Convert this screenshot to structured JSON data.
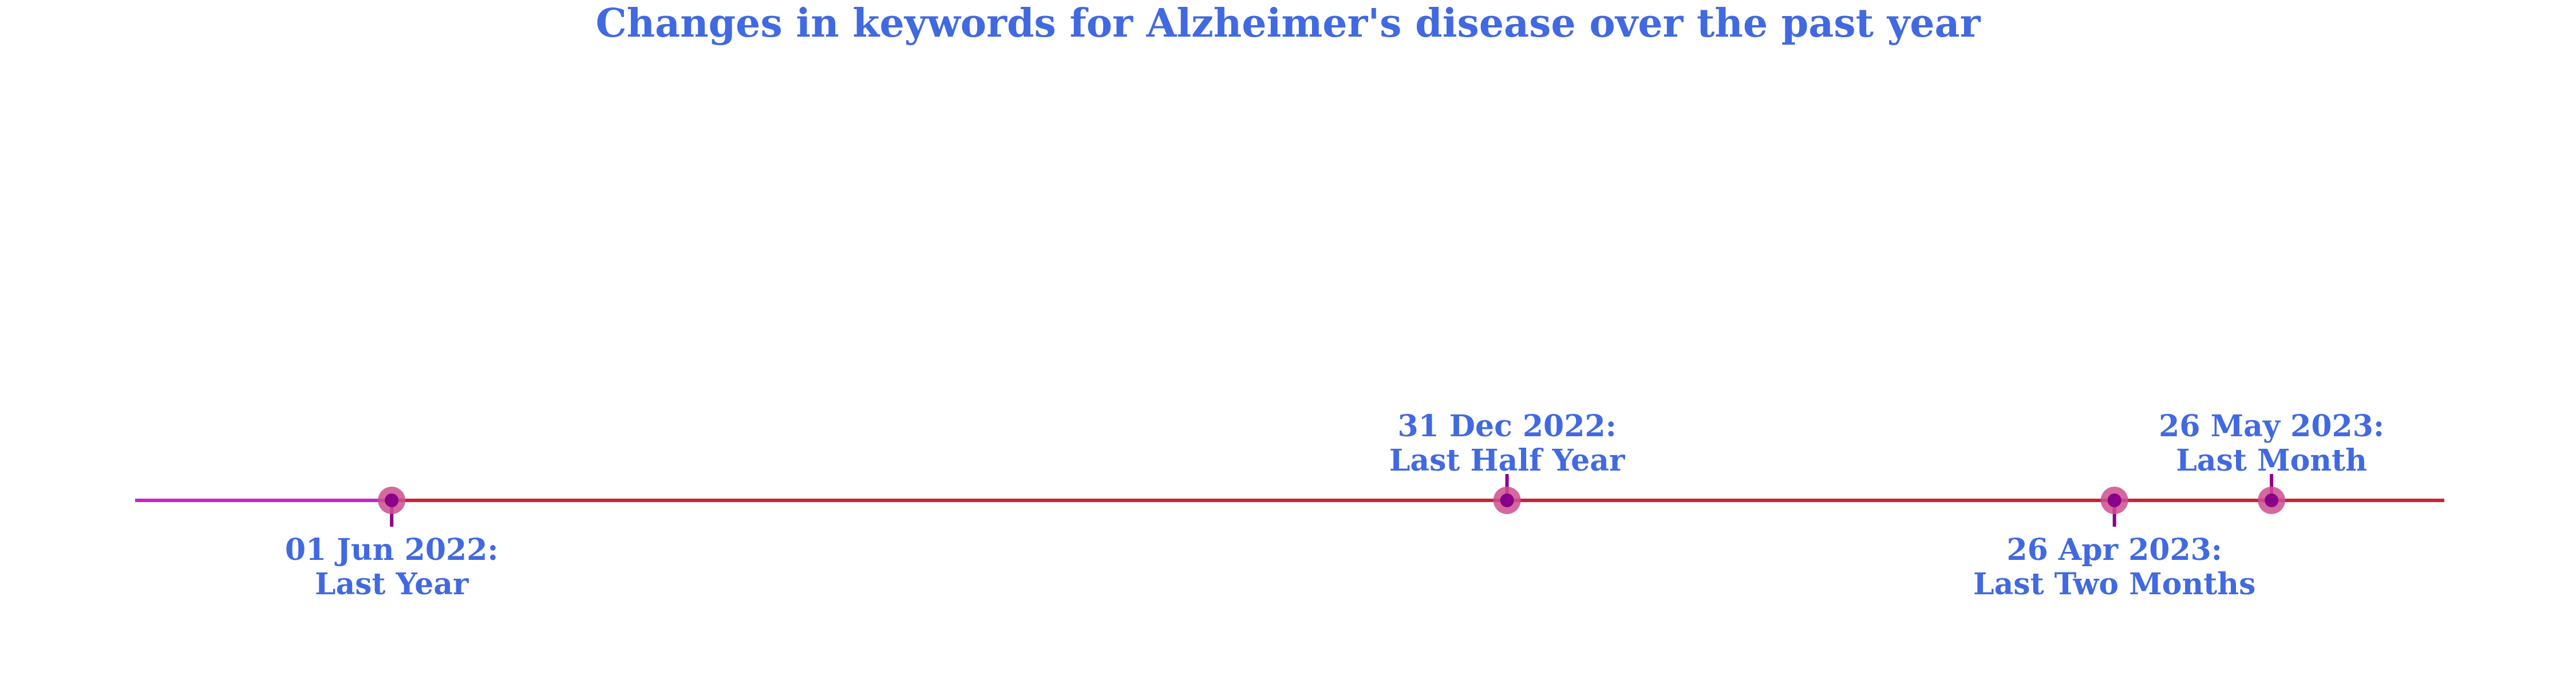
{
  "chart_data": {
    "type": "timeline",
    "title": "Changes in keywords for Alzheimer's disease over the past year",
    "xlim": [
      "2022-04-13",
      "2023-06-28"
    ],
    "events": [
      {
        "date": "2022-06-01",
        "date_label": "01 Jun 2022:",
        "label": "Last Year",
        "side": "below"
      },
      {
        "date": "2022-12-31",
        "date_label": "31 Dec 2022:",
        "label": "Last Half Year",
        "side": "above"
      },
      {
        "date": "2023-04-26",
        "date_label": "26 Apr 2023:",
        "label": "Last Two Months",
        "side": "below"
      },
      {
        "date": "2023-05-26",
        "date_label": "26 May 2023:",
        "label": "Last Month",
        "side": "above"
      }
    ],
    "grid": false,
    "legend": "none"
  },
  "colors": {
    "title": "#4169e1",
    "label": "#4169e1",
    "axis_line_start": "#cc22cc",
    "axis_line_main": "#cc2233",
    "marker_outer": "#cc4f8f",
    "marker_inner": "#8b008b",
    "stem": "#8b008b"
  }
}
